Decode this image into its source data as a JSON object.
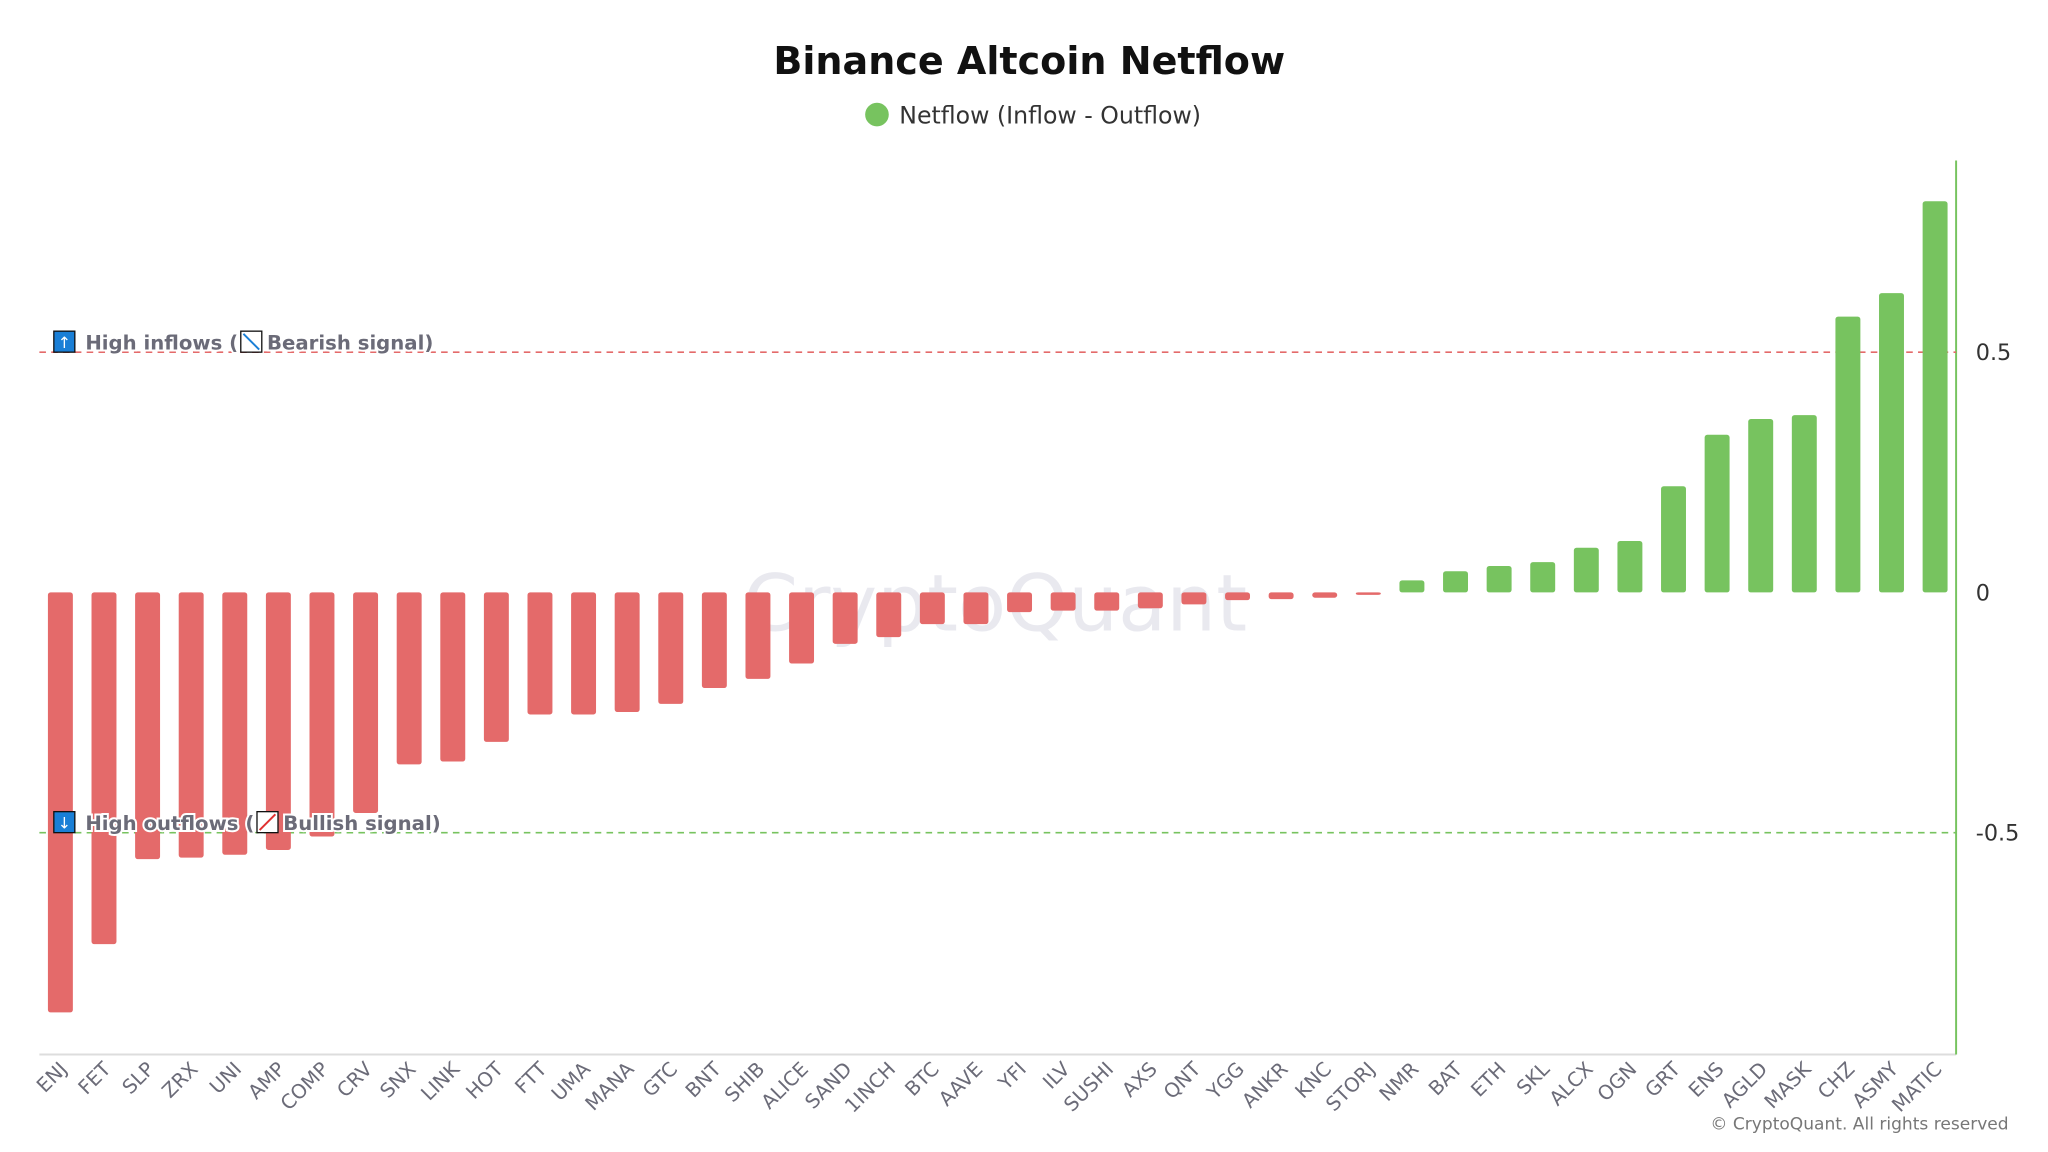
{
  "chart_data": {
    "type": "bar",
    "title": "Binance Altcoin Netflow",
    "legend": [
      {
        "label": "Netflow (Inflow - Outflow)",
        "color": "#77c35f"
      }
    ],
    "legend_position": "top-center",
    "categories": [
      "ENJ",
      "FET",
      "SLP",
      "ZRX",
      "UNI",
      "AMP",
      "COMP",
      "CRV",
      "SNX",
      "LINK",
      "HOT",
      "FTT",
      "UMA",
      "MANA",
      "GTC",
      "BNT",
      "SHIB",
      "ALICE",
      "SAND",
      "1INCH",
      "BTC",
      "AAVE",
      "YFI",
      "ILV",
      "SUSHI",
      "AXS",
      "QNT",
      "YGG",
      "ANKR",
      "KNC",
      "STORJ",
      "NMR",
      "BAT",
      "ETH",
      "SKL",
      "ALCX",
      "OGN",
      "GRT",
      "ENS",
      "AGLD",
      "MASK",
      "CHZ",
      "ASMY",
      "MATIC"
    ],
    "values": [
      -0.874,
      -0.732,
      -0.555,
      -0.552,
      -0.546,
      -0.536,
      -0.508,
      -0.459,
      -0.358,
      -0.352,
      -0.311,
      -0.254,
      -0.254,
      -0.249,
      -0.232,
      -0.199,
      -0.18,
      -0.148,
      -0.107,
      -0.093,
      -0.066,
      -0.066,
      -0.041,
      -0.038,
      -0.038,
      -0.033,
      -0.025,
      -0.016,
      -0.014,
      -0.011,
      -0.005,
      0.025,
      0.044,
      0.055,
      0.063,
      0.093,
      0.107,
      0.221,
      0.328,
      0.361,
      0.369,
      0.574,
      0.623,
      0.814
    ],
    "positive_color": "#77c35f",
    "negative_color": "#e46a6a",
    "ylim": [
      -0.96,
      0.9
    ],
    "yticks": [
      {
        "value": 0.5,
        "label": "0.5"
      },
      {
        "value": 0,
        "label": "0"
      },
      {
        "value": -0.5,
        "label": "-0.5"
      }
    ],
    "y_axis_position": "right",
    "xlabel": "",
    "ylabel": "",
    "annotations": [
      {
        "value": 0.5,
        "text": "High inflows (",
        "text2": "Bearish signal)",
        "line_color": "#e46a6a"
      },
      {
        "value": -0.5,
        "text": "High outflows (",
        "text2": "Bullish signal)",
        "line_color": "#77c35f"
      }
    ],
    "watermark": "CryptoQuant",
    "copyright": "© CryptoQuant. All rights reserved"
  }
}
